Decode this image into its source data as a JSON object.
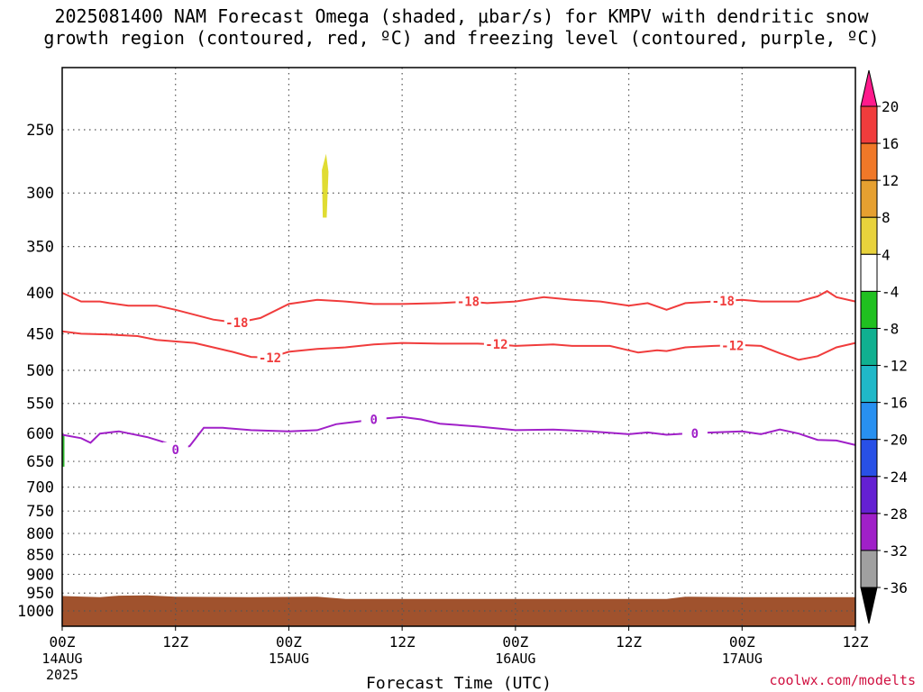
{
  "title": {
    "line1": "2025081400 NAM Forecast Omega (shaded, μbar/s) for KMPV with dendritic snow",
    "line2": "growth region (contoured, red, ºC) and freezing level (contoured, purple, ºC)"
  },
  "credit": "coolwx.com/modelts",
  "chart_data": {
    "type": "time-height cross section",
    "xlabel": "Forecast Time (UTC)",
    "x_ticks": [
      {
        "hour": 0,
        "label": "00Z",
        "sub": "14AUG",
        "sub2": "2025"
      },
      {
        "hour": 12,
        "label": "12Z",
        "sub": "",
        "sub2": ""
      },
      {
        "hour": 24,
        "label": "00Z",
        "sub": "15AUG",
        "sub2": ""
      },
      {
        "hour": 36,
        "label": "12Z",
        "sub": "",
        "sub2": ""
      },
      {
        "hour": 48,
        "label": "00Z",
        "sub": "16AUG",
        "sub2": ""
      },
      {
        "hour": 60,
        "label": "12Z",
        "sub": "",
        "sub2": ""
      },
      {
        "hour": 72,
        "label": "00Z",
        "sub": "17AUG",
        "sub2": ""
      },
      {
        "hour": 84,
        "label": "12Z",
        "sub": "",
        "sub2": ""
      }
    ],
    "xlim_hours": [
      0,
      84
    ],
    "y_axis": "pressure (hPa), log scale, inverted",
    "y_ticks": [
      250,
      300,
      350,
      400,
      450,
      500,
      550,
      600,
      650,
      700,
      750,
      800,
      850,
      900,
      950,
      1000
    ],
    "ylim_hpa": [
      200,
      1025
    ],
    "grid": true,
    "contours": [
      {
        "label": "-18",
        "color": "#f03c3c",
        "label_positions": [
          18.5,
          43,
          70
        ],
        "points": [
          [
            0,
            400
          ],
          [
            2,
            410
          ],
          [
            4,
            410
          ],
          [
            5,
            412
          ],
          [
            7,
            415
          ],
          [
            10,
            415
          ],
          [
            12,
            420
          ],
          [
            16,
            432
          ],
          [
            18.5,
            436
          ],
          [
            21,
            430
          ],
          [
            24,
            413
          ],
          [
            27,
            408
          ],
          [
            30,
            410
          ],
          [
            33,
            413
          ],
          [
            36,
            413
          ],
          [
            40,
            412
          ],
          [
            43,
            410
          ],
          [
            45,
            412
          ],
          [
            48,
            410
          ],
          [
            51,
            405
          ],
          [
            54,
            408
          ],
          [
            57,
            410
          ],
          [
            60,
            415
          ],
          [
            62,
            412
          ],
          [
            64,
            420
          ],
          [
            66,
            412
          ],
          [
            69,
            410
          ],
          [
            72,
            408
          ],
          [
            74,
            410
          ],
          [
            78,
            410
          ],
          [
            80,
            404
          ],
          [
            81,
            398
          ],
          [
            82,
            405
          ],
          [
            84,
            410
          ]
        ]
      },
      {
        "label": "-12",
        "color": "#f03c3c",
        "label_positions": [
          22,
          46,
          71
        ]
      },
      {
        "label": "0",
        "color": "#a020c8",
        "label_positions": [
          12,
          33,
          67
        ]
      }
    ],
    "shaded_regions": [
      {
        "name": "omega 4 to 8",
        "color": "#e0dc32",
        "hours": [
          27.5,
          28.2
        ],
        "hpa": [
          268,
          322
        ]
      },
      {
        "name": "omega -4 to -8",
        "color": "#2eb82e",
        "hours": [
          0,
          0.2
        ],
        "hpa": [
          602,
          660
        ]
      },
      {
        "name": "below ground",
        "color": "#a0522d",
        "top_hpa": 960
      }
    ],
    "colorbar": {
      "units": "μbar/s",
      "colors": [
        "#ff1a8c",
        "#f03c3c",
        "#f07828",
        "#e6a030",
        "#e8d23c",
        "#ffffff",
        "#20c020",
        "#10b090",
        "#20b8c8",
        "#2890f0",
        "#2850e6",
        "#6420d2",
        "#a020c8",
        "#a0a0a0",
        "#000000"
      ],
      "labels": [
        "20",
        "16",
        "12",
        "8",
        "4",
        "-4",
        "-8",
        "-12",
        "-16",
        "-20",
        "-24",
        "-28",
        "-32",
        "-36"
      ]
    }
  }
}
